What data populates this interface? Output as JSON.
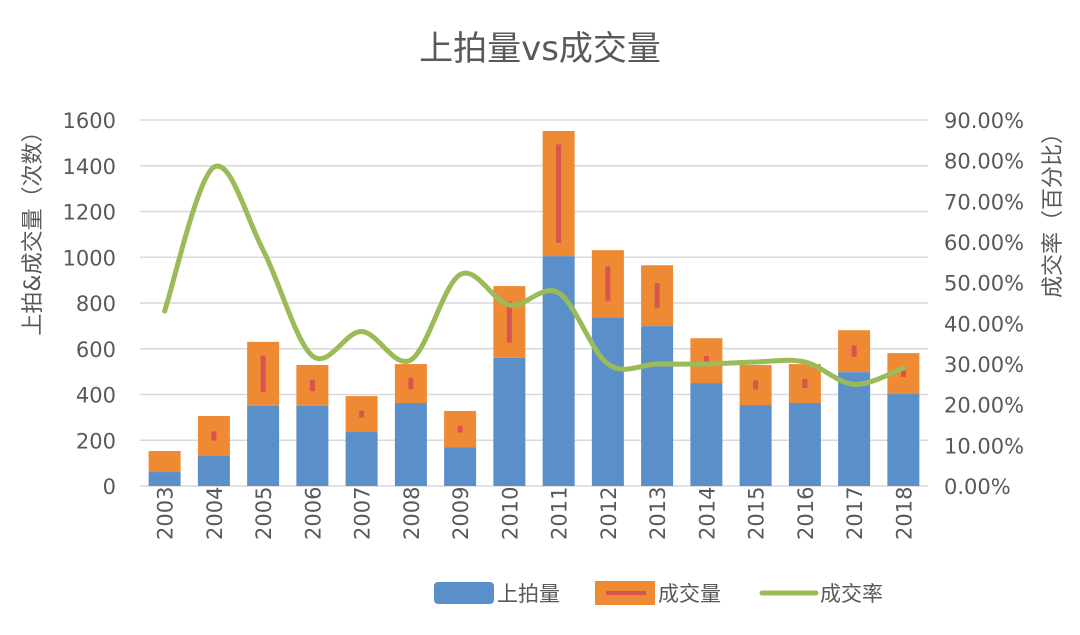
{
  "chart_data": {
    "type": "bar",
    "subtype": "stacked-bar-with-line",
    "title": "上拍量vs成交量",
    "ylabel_left": "上拍&成交量（次数）",
    "ylabel_right": "成交率（百分比）",
    "xlabel": "",
    "categories": [
      "2003",
      "2004",
      "2005",
      "2006",
      "2007",
      "2008",
      "2009",
      "2010",
      "2011",
      "2012",
      "2013",
      "2014",
      "2015",
      "2016",
      "2017",
      "2018"
    ],
    "series": [
      {
        "name": "上拍量",
        "kind": "bar",
        "axis": "left",
        "color": "#5B8FC9",
        "values": [
          61,
          131,
          350,
          350,
          236,
          363,
          170,
          560,
          1005,
          738,
          699,
          450,
          354,
          363,
          498,
          402
        ]
      },
      {
        "name": "成交量",
        "kind": "bar-stacked",
        "axis": "left",
        "color": "#EE8A33",
        "errorbar_color": "#D9534F",
        "values": [
          92,
          175,
          280,
          179,
          157,
          170,
          158,
          314,
          547,
          293,
          266,
          196,
          175,
          170,
          183,
          179
        ],
        "error": [
          0,
          20,
          80,
          25,
          15,
          25,
          15,
          90,
          215,
          75,
          55,
          20,
          20,
          20,
          25,
          15
        ]
      },
      {
        "name": "成交率",
        "kind": "line",
        "axis": "right",
        "color": "#9BBB59",
        "smooth": true,
        "values": [
          43.0,
          78.4,
          58.0,
          32.0,
          38.0,
          31.0,
          52.0,
          44.5,
          47.5,
          30.0,
          30.0,
          30.0,
          30.5,
          30.5,
          25.0,
          29.0
        ]
      }
    ],
    "ylim_left": [
      0,
      1600
    ],
    "yticks_left": [
      "0",
      "200",
      "400",
      "600",
      "800",
      "1000",
      "1200",
      "1400",
      "1600"
    ],
    "ylim_right": [
      0,
      90
    ],
    "yticks_right": [
      "0.00%",
      "10.00%",
      "20.00%",
      "30.00%",
      "40.00%",
      "50.00%",
      "60.00%",
      "70.00%",
      "80.00%",
      "90.00%"
    ],
    "grid": true,
    "legend_position": "bottom"
  }
}
